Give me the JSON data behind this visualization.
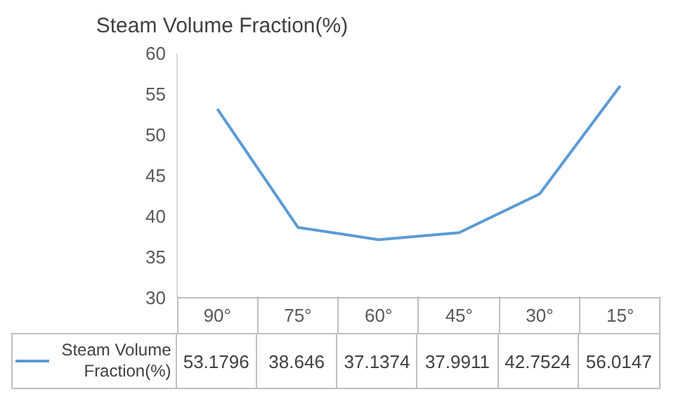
{
  "chart_data": {
    "type": "line",
    "title": "Steam Volume Fraction(%)",
    "categories": [
      "90°",
      "75°",
      "60°",
      "45°",
      "30°",
      "15°"
    ],
    "series": [
      {
        "name": "Steam Volume Fraction(%)",
        "color": "#5b9bd5",
        "values": [
          53.1796,
          38.646,
          37.1374,
          37.9911,
          42.7524,
          56.0147
        ]
      }
    ],
    "ylim": [
      30,
      60
    ],
    "yticks": [
      30,
      35,
      40,
      45,
      50,
      55,
      60
    ],
    "grid": false,
    "legend": "bottom",
    "data_labels": true,
    "marker": "none",
    "line_style": "solid"
  }
}
